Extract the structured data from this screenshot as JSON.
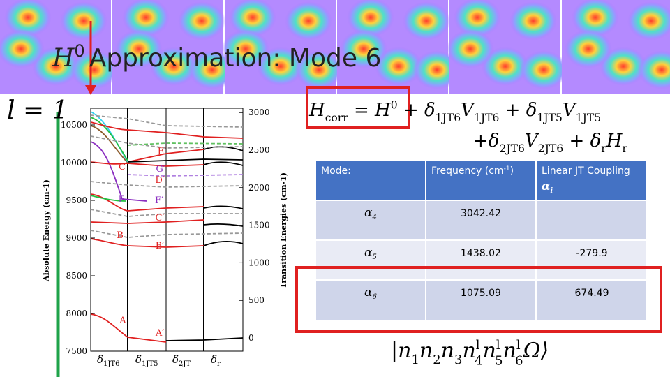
{
  "title": {
    "symbol": "H",
    "superscript": "0",
    "text": "Approximation: Mode 6"
  },
  "state_label": "l = 1",
  "figure": {
    "left_axis_label": "Absolute Energy (cm-1)",
    "left_ticks": [
      7500,
      8000,
      8500,
      9000,
      9500,
      10000,
      10500
    ],
    "right_axis_label": "Transition Energies (cm-1)",
    "right_ticks": [
      0,
      500,
      1000,
      1500,
      2000,
      2500,
      3000
    ],
    "bottom_labels": [
      {
        "t": "δ",
        "sub": "1JT6"
      },
      {
        "t": "δ",
        "sub": "1JT5"
      },
      {
        "t": "δ",
        "sub": "2JT"
      },
      {
        "t": "δ",
        "sub": "r"
      }
    ],
    "levels": [
      "A",
      "A′",
      "B",
      "B′",
      "C",
      "C′",
      "D′",
      "E′",
      "F",
      "F′",
      "G′"
    ]
  },
  "equation": {
    "line1": [
      {
        "t": "H",
        "sub": "corr"
      },
      {
        "t": " = "
      },
      {
        "t": "H",
        "sup": "0"
      },
      {
        "t": " + "
      },
      {
        "t": "δ",
        "sub": "1JT6"
      },
      {
        "t": "V",
        "sub": "1JT6"
      },
      {
        "t": " + "
      },
      {
        "t": "δ",
        "sub": "1JT5"
      },
      {
        "t": "V",
        "sub": "1JT5"
      }
    ],
    "line2": [
      {
        "t": "+"
      },
      {
        "t": "δ",
        "sub": "2JT6"
      },
      {
        "t": "V",
        "sub": "2JT6"
      },
      {
        "t": " + "
      },
      {
        "t": "δ",
        "sub": "r"
      },
      {
        "t": "H",
        "sub": "r"
      }
    ]
  },
  "table": {
    "header": [
      {
        "t": "Mode:"
      },
      {
        "t": "Frequency (cm",
        "sup": "-1",
        "after": ")"
      },
      {
        "t": "Linear JT Coupling",
        "greek": "α",
        "sub": "i"
      }
    ],
    "rows": [
      [
        {
          "t": "α",
          "sub": "4"
        },
        "3042.42"
      ],
      [
        {
          "t": "α",
          "sub": "5"
        },
        "1438.02",
        "-279.9"
      ],
      [
        {
          "t": "α",
          "sub": "6"
        },
        "1075.09",
        "674.49"
      ]
    ]
  },
  "ket": [
    {
      "t": "|"
    },
    {
      "t": "n",
      "sub": "1"
    },
    {
      "t": "n",
      "sub": "2"
    },
    {
      "t": "n",
      "sub": "3"
    },
    {
      "t": "n",
      "sub": "4",
      "sup": "l"
    },
    {
      "t": "n",
      "sub": "5",
      "sup": "l"
    },
    {
      "t": "n",
      "sub": "6",
      "sup": "l"
    },
    {
      "t": "Ω⟩"
    }
  ]
}
